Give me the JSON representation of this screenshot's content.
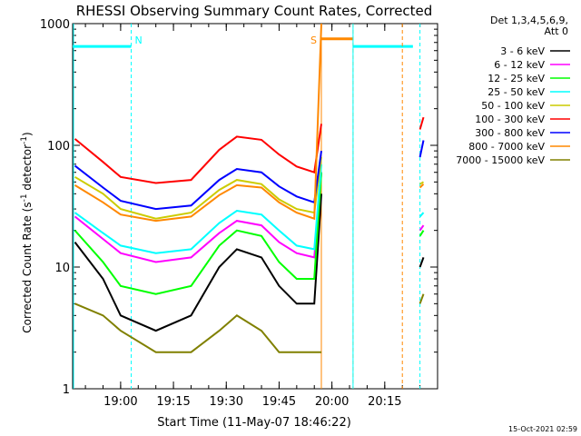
{
  "chart_data": {
    "type": "line",
    "title": "RHESSI Observing Summary Count Rates, Corrected",
    "xlabel": "Start Time (11-May-07 18:46:22)",
    "ylabel_main": "Corrected Count Rate (s",
    "ylabel_sup1": "-1",
    "ylabel_mid": " detector",
    "ylabel_sup2": "-1",
    "ylabel_end": ")",
    "y_scale": "log",
    "ylim": [
      1,
      1000
    ],
    "xlim": [
      "18:46:22",
      "20:30:00"
    ],
    "x_ticks": [
      "19:00",
      "19:15",
      "19:30",
      "19:45",
      "20:00",
      "20:15"
    ],
    "y_ticks": [
      "1",
      "10",
      "100",
      "1000"
    ],
    "legend_header": [
      "Det 1,3,4,5,6,9,",
      "Att 0"
    ],
    "footer_timestamp": "15-Oct-2021 02:59",
    "flags": [
      {
        "label": "N",
        "start": "18:46:22",
        "end": "19:03:00",
        "color": "#00ffff"
      },
      {
        "label": "S",
        "start": "19:57:00",
        "end": "20:06:00",
        "color": "#ff8800"
      }
    ],
    "flag_bars": [
      {
        "start": "18:46:22",
        "end": "19:03:00",
        "level": 650,
        "color": "#00ffff"
      },
      {
        "start": "19:57:00",
        "end": "20:06:00",
        "level": 750,
        "color": "#ff8800"
      },
      {
        "start": "20:06:00",
        "end": "20:23:00",
        "level": 650,
        "color": "#00ffff"
      }
    ],
    "data_gap": {
      "start": "19:57:00",
      "end": "20:25:00"
    },
    "series": [
      {
        "name": "3 - 6 keV",
        "color": "#000000",
        "times": [
          "18:47",
          "18:55",
          "19:00",
          "19:10",
          "19:20",
          "19:28",
          "19:33",
          "19:40",
          "19:45",
          "19:50",
          "19:55",
          "19:57",
          "20:25",
          "20:26"
        ],
        "values": [
          16,
          8,
          4,
          3,
          4,
          10,
          14,
          12,
          7,
          5,
          5,
          40,
          10,
          12
        ]
      },
      {
        "name": "6 - 12 keV",
        "color": "#ff00ff",
        "times": [
          "18:47",
          "18:55",
          "19:00",
          "19:10",
          "19:20",
          "19:28",
          "19:33",
          "19:40",
          "19:45",
          "19:50",
          "19:55",
          "19:57",
          "20:25",
          "20:26"
        ],
        "values": [
          26,
          17,
          13,
          11,
          12,
          19,
          24,
          22,
          16,
          13,
          12,
          60,
          20,
          22
        ]
      },
      {
        "name": "12 - 25 keV",
        "color": "#00ff00",
        "times": [
          "18:47",
          "18:55",
          "19:00",
          "19:10",
          "19:20",
          "19:28",
          "19:33",
          "19:40",
          "19:45",
          "19:50",
          "19:55",
          "19:57",
          "20:25",
          "20:26"
        ],
        "values": [
          20,
          11,
          7,
          6,
          7,
          15,
          20,
          18,
          11,
          8,
          8,
          60,
          18,
          20
        ]
      },
      {
        "name": "25 - 50 keV",
        "color": "#00ffff",
        "times": [
          "18:47",
          "18:55",
          "19:00",
          "19:10",
          "19:20",
          "19:28",
          "19:33",
          "19:40",
          "19:45",
          "19:50",
          "19:55",
          "19:57",
          "20:25",
          "20:26"
        ],
        "values": [
          28,
          19,
          15,
          13,
          14,
          23,
          29,
          27,
          20,
          15,
          14,
          70,
          26,
          28
        ]
      },
      {
        "name": "50 - 100 keV",
        "color": "#cccc00",
        "times": [
          "18:47",
          "18:55",
          "19:00",
          "19:10",
          "19:20",
          "19:28",
          "19:33",
          "19:40",
          "19:45",
          "19:50",
          "19:55",
          "19:57",
          "20:25",
          "20:26"
        ],
        "values": [
          55,
          40,
          30,
          25,
          28,
          43,
          52,
          48,
          36,
          30,
          28,
          80,
          48,
          50
        ]
      },
      {
        "name": "100 - 300 keV",
        "color": "#ff0000",
        "times": [
          "18:47",
          "18:55",
          "19:00",
          "19:10",
          "19:20",
          "19:28",
          "19:33",
          "19:40",
          "19:45",
          "19:50",
          "19:55",
          "19:57",
          "20:25",
          "20:26"
        ],
        "values": [
          113,
          73,
          55,
          49,
          52,
          92,
          118,
          111,
          84,
          67,
          60,
          150,
          135,
          170
        ]
      },
      {
        "name": "300 - 800 keV",
        "color": "#0000ff",
        "times": [
          "18:47",
          "18:55",
          "19:00",
          "19:10",
          "19:20",
          "19:28",
          "19:33",
          "19:40",
          "19:45",
          "19:50",
          "19:55",
          "19:57",
          "20:25",
          "20:26"
        ],
        "values": [
          68,
          45,
          35,
          30,
          32,
          52,
          64,
          60,
          46,
          38,
          34,
          90,
          80,
          110
        ]
      },
      {
        "name": "800 - 7000 keV",
        "color": "#ff8800",
        "times": [
          "18:47",
          "18:55",
          "19:00",
          "19:10",
          "19:20",
          "19:28",
          "19:33",
          "19:40",
          "19:45",
          "19:50",
          "19:55",
          "19:57",
          "20:25",
          "20:26"
        ],
        "values": [
          47,
          34,
          27,
          24,
          26,
          39,
          47,
          45,
          34,
          28,
          25,
          1000,
          45,
          48
        ]
      },
      {
        "name": "7000 - 15000 keV",
        "color": "#808000",
        "times": [
          "18:47",
          "18:55",
          "19:00",
          "19:10",
          "19:20",
          "19:28",
          "19:33",
          "19:40",
          "19:45",
          "19:50",
          "19:55",
          "19:57",
          "20:25",
          "20:26"
        ],
        "values": [
          5,
          4,
          3,
          2,
          2,
          3,
          4,
          3,
          2,
          2,
          2,
          2,
          5,
          6
        ]
      }
    ]
  }
}
